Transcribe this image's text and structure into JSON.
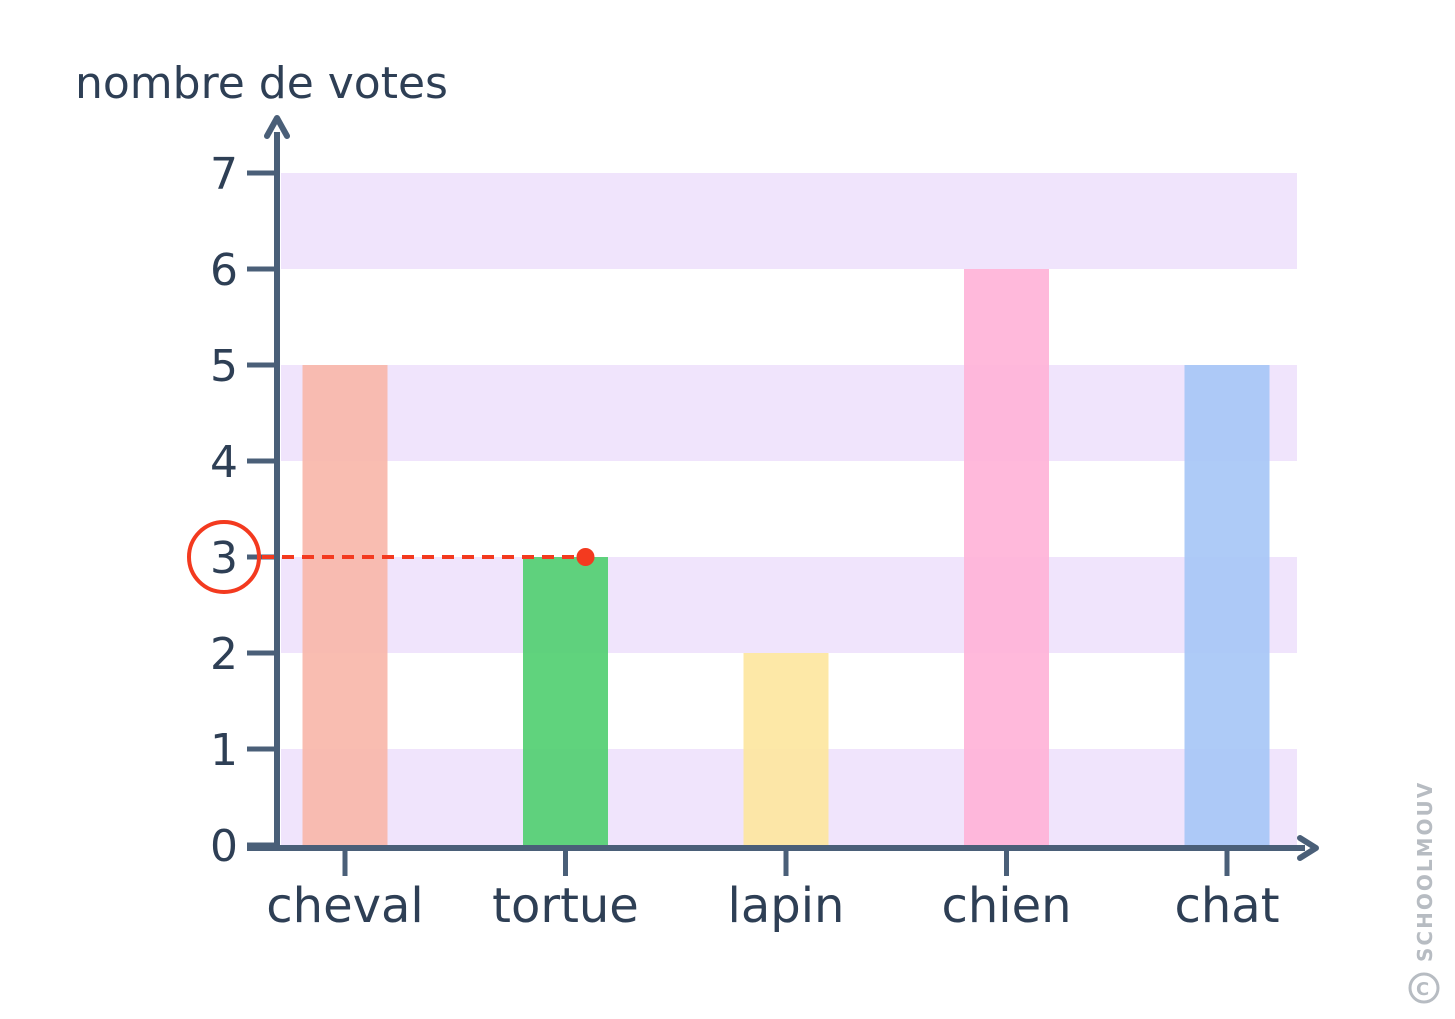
{
  "chart_data": {
    "type": "bar",
    "ylabel": "nombre de votes",
    "xlabel": "",
    "categories": [
      "cheval",
      "tortue",
      "lapin",
      "chien",
      "chat"
    ],
    "values": [
      5,
      3,
      2,
      6,
      5
    ],
    "ylim": [
      0,
      7
    ],
    "yticks": [
      "0",
      "1",
      "2",
      "3",
      "4",
      "5",
      "6",
      "7"
    ],
    "grid": "alternating horizontal bands",
    "bar_colors": [
      "#f9b7aa",
      "#52cf72",
      "#fde69f",
      "#ffb3d8",
      "#a7c7f6"
    ],
    "band_color": "#f0e4fc",
    "axis_color": "#4a5f78",
    "highlight": {
      "category": "tortue",
      "value": 3,
      "label": "3",
      "color": "#f33a1f"
    }
  },
  "watermark": "SCHOOLMOUV",
  "copyright_symbol": "C"
}
